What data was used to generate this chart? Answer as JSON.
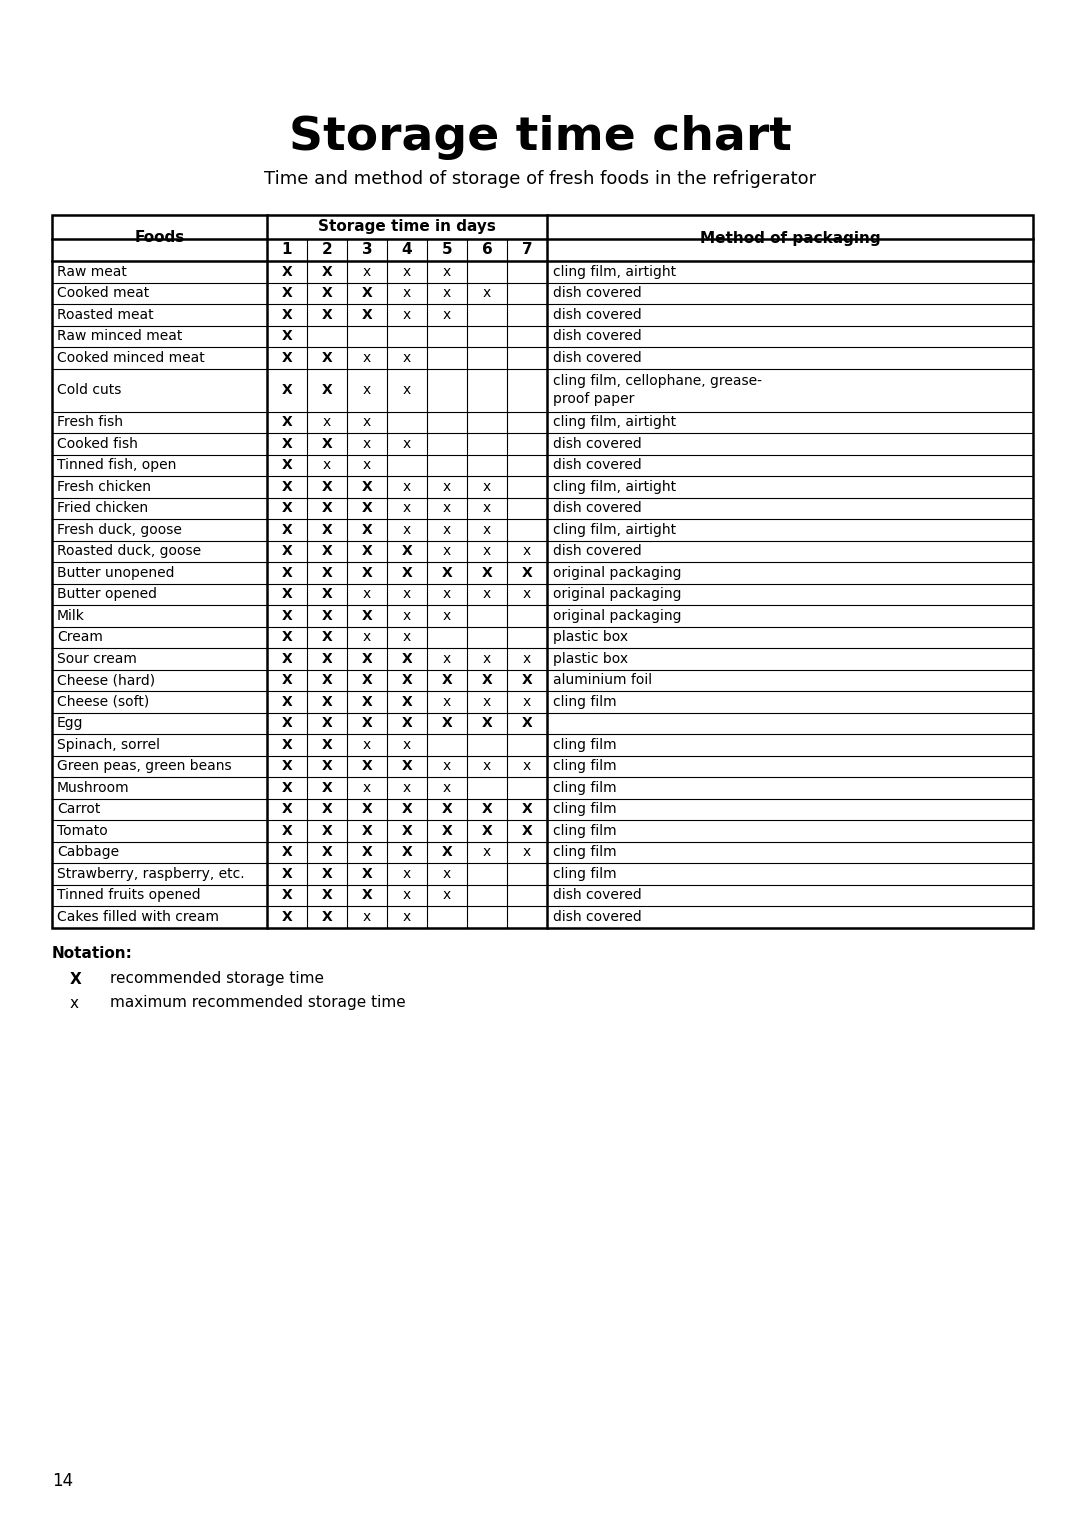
{
  "title": "Storage time chart",
  "subtitle": "Time and method of storage of fresh foods in the refrigerator",
  "storage_header": "Storage time in days",
  "rows": [
    [
      "Raw meat",
      "X",
      "X",
      "x",
      "x",
      "x",
      "",
      "",
      "cling film, airtight"
    ],
    [
      "Cooked meat",
      "X",
      "X",
      "X",
      "x",
      "x",
      "x",
      "",
      "dish covered"
    ],
    [
      "Roasted meat",
      "X",
      "X",
      "X",
      "x",
      "x",
      "",
      "",
      "dish covered"
    ],
    [
      "Raw minced meat",
      "X",
      "",
      "",
      "",
      "",
      "",
      "",
      "dish covered"
    ],
    [
      "Cooked minced meat",
      "X",
      "X",
      "x",
      "x",
      "",
      "",
      "",
      "dish covered"
    ],
    [
      "Cold cuts",
      "X",
      "X",
      "x",
      "x",
      "",
      "",
      "",
      "cling film, cellophane, grease-\nproof paper"
    ],
    [
      "Fresh fish",
      "X",
      "x",
      "x",
      "",
      "",
      "",
      "",
      "cling film, airtight"
    ],
    [
      "Cooked fish",
      "X",
      "X",
      "x",
      "x",
      "",
      "",
      "",
      "dish covered"
    ],
    [
      "Tinned fish, open",
      "X",
      "x",
      "x",
      "",
      "",
      "",
      "",
      "dish covered"
    ],
    [
      "Fresh chicken",
      "X",
      "X",
      "X",
      "x",
      "x",
      "x",
      "",
      "cling film, airtight"
    ],
    [
      "Fried chicken",
      "X",
      "X",
      "X",
      "x",
      "x",
      "x",
      "",
      "dish covered"
    ],
    [
      "Fresh duck, goose",
      "X",
      "X",
      "X",
      "x",
      "x",
      "x",
      "",
      "cling film, airtight"
    ],
    [
      "Roasted duck, goose",
      "X",
      "X",
      "X",
      "X",
      "x",
      "x",
      "x",
      "dish covered"
    ],
    [
      "Butter unopened",
      "X",
      "X",
      "X",
      "X",
      "X",
      "X",
      "X",
      "original packaging"
    ],
    [
      "Butter opened",
      "X",
      "X",
      "x",
      "x",
      "x",
      "x",
      "x",
      "original packaging"
    ],
    [
      "Milk",
      "X",
      "X",
      "X",
      "x",
      "x",
      "",
      "",
      "original packaging"
    ],
    [
      "Cream",
      "X",
      "X",
      "x",
      "x",
      "",
      "",
      "",
      "plastic box"
    ],
    [
      "Sour cream",
      "X",
      "X",
      "X",
      "X",
      "x",
      "x",
      "x",
      "plastic box"
    ],
    [
      "Cheese (hard)",
      "X",
      "X",
      "X",
      "X",
      "X",
      "X",
      "X",
      "aluminium foil"
    ],
    [
      "Cheese (soft)",
      "X",
      "X",
      "X",
      "X",
      "x",
      "x",
      "x",
      "cling film"
    ],
    [
      "Egg",
      "X",
      "X",
      "X",
      "X",
      "X",
      "X",
      "X",
      ""
    ],
    [
      "Spinach, sorrel",
      "X",
      "X",
      "x",
      "x",
      "",
      "",
      "",
      "cling film"
    ],
    [
      "Green peas, green beans",
      "X",
      "X",
      "X",
      "X",
      "x",
      "x",
      "x",
      "cling film"
    ],
    [
      "Mushroom",
      "X",
      "X",
      "x",
      "x",
      "x",
      "",
      "",
      "cling film"
    ],
    [
      "Carrot",
      "X",
      "X",
      "X",
      "X",
      "X",
      "X",
      "X",
      "cling film"
    ],
    [
      "Tomato",
      "X",
      "X",
      "X",
      "X",
      "X",
      "X",
      "X",
      "cling film"
    ],
    [
      "Cabbage",
      "X",
      "X",
      "X",
      "X",
      "X",
      "x",
      "x",
      "cling film"
    ],
    [
      "Strawberry, raspberry, etc.",
      "X",
      "X",
      "X",
      "x",
      "x",
      "",
      "",
      "cling film"
    ],
    [
      "Tinned fruits opened",
      "X",
      "X",
      "X",
      "x",
      "x",
      "",
      "",
      "dish covered"
    ],
    [
      "Cakes filled with cream",
      "X",
      "X",
      "x",
      "x",
      "",
      "",
      "",
      "dish covered"
    ]
  ],
  "notation_title": "Notation:",
  "notation_X": "recommended storage time",
  "notation_x": "maximum recommended storage time",
  "page_number": "14",
  "bg_color": "#ffffff",
  "text_color": "#000000",
  "line_color": "#000000"
}
